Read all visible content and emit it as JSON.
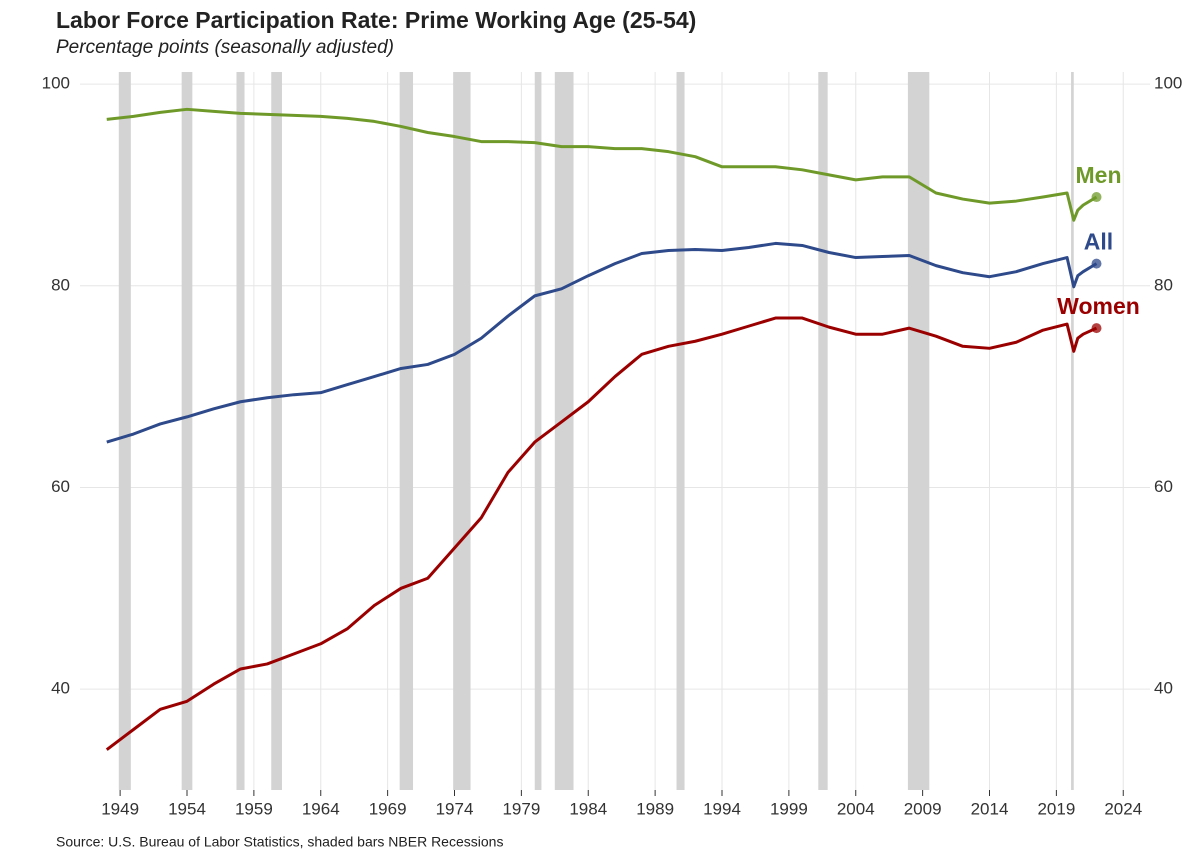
{
  "chart_data": {
    "type": "line",
    "title": "Labor Force Participation Rate: Prime Working Age (25-54)",
    "subtitle": "Percentage points (seasonally adjusted)",
    "source": "Source: U.S. Bureau of Labor Statistics, shaded bars NBER Recessions",
    "x": [
      1948,
      1950,
      1952,
      1954,
      1956,
      1958,
      1960,
      1962,
      1964,
      1966,
      1968,
      1970,
      1972,
      1974,
      1976,
      1978,
      1980,
      1982,
      1984,
      1986,
      1988,
      1990,
      1992,
      1994,
      1996,
      1998,
      2000,
      2002,
      2004,
      2006,
      2008,
      2010,
      2012,
      2014,
      2016,
      2018,
      2019.8,
      2020.3,
      2020.6,
      2021,
      2022
    ],
    "series": [
      {
        "name": "Men",
        "color": "#6f9a2a",
        "values": [
          96.5,
          96.8,
          97.2,
          97.5,
          97.3,
          97.1,
          97.0,
          96.9,
          96.8,
          96.6,
          96.3,
          95.8,
          95.2,
          94.8,
          94.3,
          94.3,
          94.2,
          93.8,
          93.8,
          93.6,
          93.6,
          93.3,
          92.8,
          91.8,
          91.8,
          91.8,
          91.5,
          91.0,
          90.5,
          90.8,
          90.8,
          89.2,
          88.6,
          88.2,
          88.4,
          88.8,
          89.2,
          86.5,
          87.5,
          88.0,
          88.8
        ]
      },
      {
        "name": "All",
        "color": "#2e4a8b",
        "values": [
          64.5,
          65.3,
          66.3,
          67.0,
          67.8,
          68.5,
          68.9,
          69.2,
          69.4,
          70.2,
          71.0,
          71.8,
          72.2,
          73.2,
          74.8,
          77.0,
          79.0,
          79.7,
          81.0,
          82.2,
          83.2,
          83.5,
          83.6,
          83.5,
          83.8,
          84.2,
          84.0,
          83.3,
          82.8,
          82.9,
          83.0,
          82.0,
          81.3,
          80.9,
          81.4,
          82.2,
          82.8,
          79.9,
          81.0,
          81.4,
          82.2
        ]
      },
      {
        "name": "Women",
        "color": "#9b0000",
        "values": [
          34.0,
          36.0,
          38.0,
          38.8,
          40.5,
          42.0,
          42.5,
          43.5,
          44.5,
          46.0,
          48.3,
          50.0,
          51.0,
          54.0,
          57.0,
          61.5,
          64.5,
          66.5,
          68.5,
          71.0,
          73.2,
          74.0,
          74.5,
          75.2,
          76.0,
          76.8,
          76.8,
          75.9,
          75.2,
          75.2,
          75.8,
          75.0,
          74.0,
          73.8,
          74.4,
          75.6,
          76.2,
          73.5,
          74.8,
          75.2,
          75.8
        ]
      }
    ],
    "recessions": [
      [
        1948.9,
        1949.8
      ],
      [
        1953.6,
        1954.4
      ],
      [
        1957.7,
        1958.3
      ],
      [
        1960.3,
        1961.1
      ],
      [
        1969.9,
        1970.9
      ],
      [
        1973.9,
        1975.2
      ],
      [
        1980.0,
        1980.5
      ],
      [
        1981.5,
        1982.9
      ],
      [
        1990.6,
        1991.2
      ],
      [
        2001.2,
        2001.9
      ],
      [
        2007.9,
        2009.5
      ],
      [
        2020.1,
        2020.3
      ]
    ],
    "recession_color": "#d3d3d3",
    "xlim": [
      1946,
      2026
    ],
    "xticks": [
      1949,
      1954,
      1959,
      1964,
      1969,
      1974,
      1979,
      1984,
      1989,
      1994,
      1999,
      2004,
      2009,
      2014,
      2019,
      2024
    ],
    "ylim": [
      30,
      101.2
    ],
    "yticks": [
      40,
      60,
      80,
      100
    ],
    "grid": true
  }
}
